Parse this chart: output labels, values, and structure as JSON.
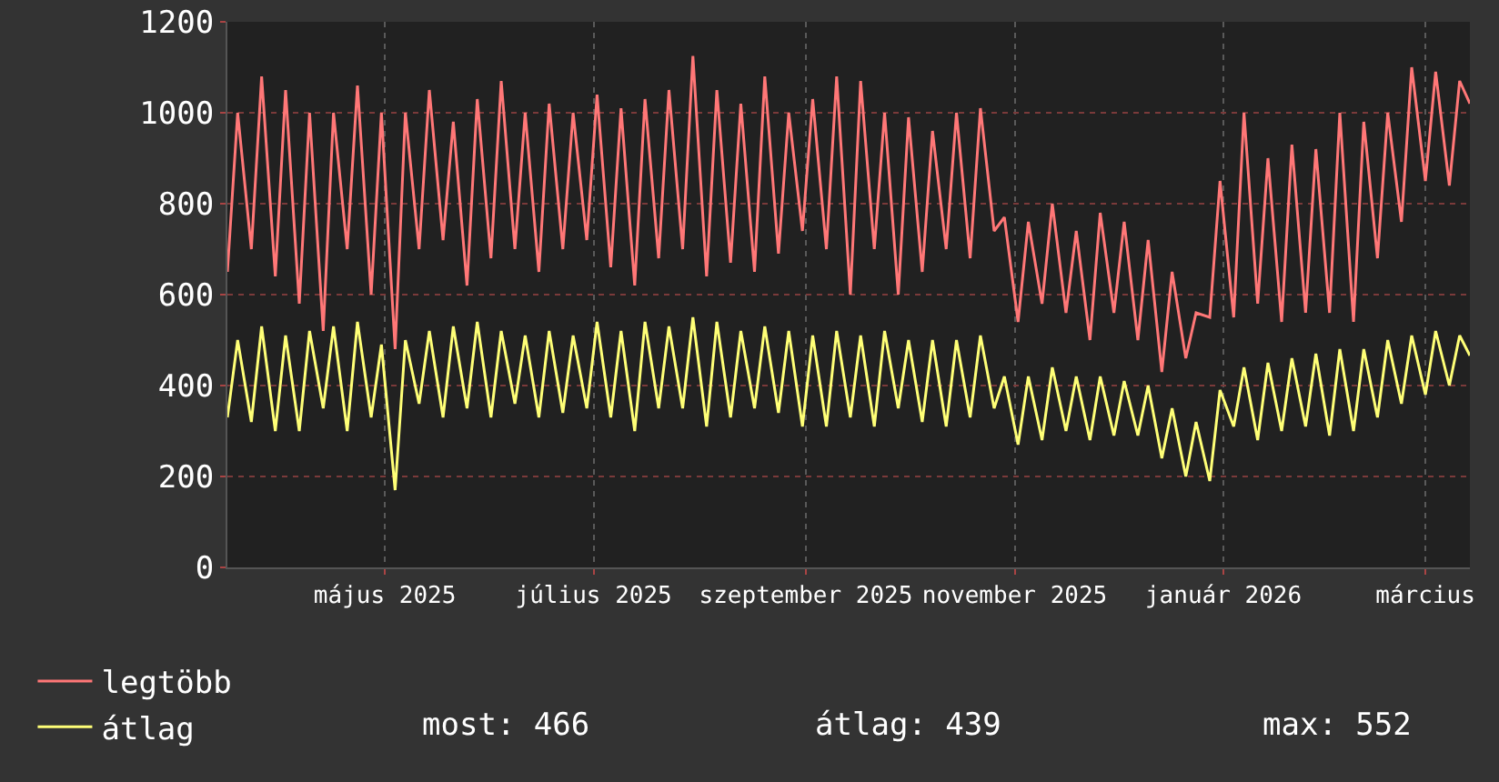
{
  "chart_data": {
    "type": "line",
    "x": [
      "2025-03-23",
      "2025-03-26",
      "2025-03-30",
      "2025-04-02",
      "2025-04-06",
      "2025-04-09",
      "2025-04-13",
      "2025-04-16",
      "2025-04-20",
      "2025-04-23",
      "2025-04-27",
      "2025-04-30",
      "2025-05-04",
      "2025-05-07",
      "2025-05-11",
      "2025-05-14",
      "2025-05-18",
      "2025-05-21",
      "2025-05-25",
      "2025-05-28",
      "2025-06-01",
      "2025-06-04",
      "2025-06-08",
      "2025-06-11",
      "2025-06-15",
      "2025-06-18",
      "2025-06-22",
      "2025-06-25",
      "2025-06-29",
      "2025-07-02",
      "2025-07-06",
      "2025-07-09",
      "2025-07-13",
      "2025-07-16",
      "2025-07-20",
      "2025-07-23",
      "2025-07-27",
      "2025-07-30",
      "2025-08-03",
      "2025-08-06",
      "2025-08-10",
      "2025-08-13",
      "2025-08-17",
      "2025-08-20",
      "2025-08-24",
      "2025-08-27",
      "2025-08-31",
      "2025-09-03",
      "2025-09-07",
      "2025-09-10",
      "2025-09-14",
      "2025-09-17",
      "2025-09-21",
      "2025-09-24",
      "2025-09-28",
      "2025-10-01",
      "2025-10-05",
      "2025-10-08",
      "2025-10-12",
      "2025-10-15",
      "2025-10-19",
      "2025-10-22",
      "2025-10-26",
      "2025-10-29",
      "2025-11-02",
      "2025-11-05",
      "2025-11-09",
      "2025-11-12",
      "2025-11-16",
      "2025-11-19",
      "2025-11-23",
      "2025-11-26",
      "2025-11-30",
      "2025-12-03",
      "2025-12-07",
      "2025-12-10",
      "2025-12-14",
      "2025-12-17",
      "2025-12-21",
      "2025-12-24",
      "2025-12-28",
      "2025-12-31",
      "2026-01-04",
      "2026-01-07",
      "2026-01-11",
      "2026-01-14",
      "2026-01-18",
      "2026-01-21",
      "2026-01-25",
      "2026-01-28",
      "2026-02-01",
      "2026-02-04",
      "2026-02-08",
      "2026-02-11",
      "2026-02-15",
      "2026-02-18",
      "2026-02-22",
      "2026-02-25",
      "2026-03-01",
      "2026-03-04",
      "2026-03-08",
      "2026-03-11",
      "2026-03-15",
      "2026-03-18",
      "2026-03-21"
    ],
    "series": [
      {
        "name": "legtöbb",
        "color": "#ff7777",
        "values": [
          650,
          1000,
          700,
          1080,
          640,
          1050,
          580,
          1000,
          520,
          1000,
          700,
          1060,
          600,
          1000,
          480,
          1000,
          700,
          1050,
          720,
          980,
          620,
          1030,
          680,
          1070,
          700,
          1000,
          650,
          1020,
          700,
          1000,
          720,
          1040,
          660,
          1010,
          620,
          1030,
          680,
          1050,
          700,
          1125,
          640,
          1050,
          670,
          1020,
          650,
          1080,
          690,
          1000,
          740,
          1030,
          700,
          1080,
          600,
          1070,
          700,
          1000,
          600,
          990,
          650,
          960,
          700,
          1000,
          680,
          1010,
          740,
          770,
          540,
          760,
          580,
          800,
          560,
          740,
          500,
          780,
          560,
          760,
          500,
          720,
          430,
          650,
          460,
          560,
          550,
          850,
          550,
          1000,
          580,
          900,
          540,
          930,
          560,
          920,
          560,
          1000,
          540,
          980,
          680,
          1000,
          760,
          1100,
          850,
          1090,
          840,
          1070,
          1020
        ]
      },
      {
        "name": "átlag",
        "color": "#ffff77",
        "values": [
          330,
          500,
          320,
          530,
          300,
          510,
          300,
          520,
          350,
          530,
          300,
          540,
          330,
          490,
          170,
          500,
          360,
          520,
          330,
          530,
          350,
          540,
          330,
          520,
          360,
          510,
          330,
          520,
          340,
          510,
          350,
          540,
          330,
          520,
          300,
          540,
          350,
          530,
          350,
          550,
          310,
          540,
          330,
          520,
          350,
          530,
          340,
          520,
          310,
          510,
          310,
          520,
          330,
          510,
          310,
          520,
          350,
          500,
          320,
          500,
          310,
          500,
          330,
          510,
          350,
          420,
          270,
          420,
          280,
          440,
          300,
          420,
          280,
          420,
          290,
          410,
          290,
          400,
          240,
          350,
          200,
          320,
          190,
          390,
          310,
          440,
          280,
          450,
          300,
          460,
          310,
          470,
          290,
          480,
          300,
          480,
          330,
          500,
          360,
          510,
          380,
          520,
          400,
          510,
          466
        ]
      }
    ],
    "xlim": [
      "2025-03-23",
      "2026-03-21"
    ],
    "xticks": [
      {
        "value": "2025-05-08",
        "label": "május 2025"
      },
      {
        "value": "2025-07-08",
        "label": "július 2025"
      },
      {
        "value": "2025-09-08",
        "label": "szeptember 2025"
      },
      {
        "value": "2025-11-08",
        "label": "november 2025"
      },
      {
        "value": "2026-01-08",
        "label": "január 2026"
      },
      {
        "value": "2026-03-08",
        "label": "március"
      }
    ],
    "ylim": [
      0,
      1200
    ],
    "yticks": [
      0,
      200,
      400,
      600,
      800,
      1000,
      1200
    ],
    "grid": true,
    "legend": "bottom",
    "annotations": [
      "most: 466",
      "átlag: 439",
      "max: 552"
    ]
  }
}
